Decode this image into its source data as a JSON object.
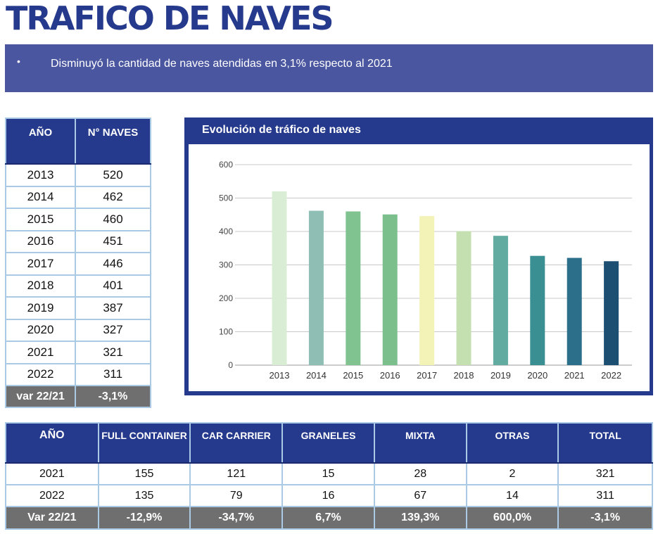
{
  "title": "TRAFICO DE NAVES",
  "banner": {
    "bullet": "•",
    "text": "Disminuyó la cantidad de naves atendidas en 3,1% respecto al 2021"
  },
  "table1": {
    "headers": [
      "AÑO",
      "N° NAVES"
    ],
    "rows": [
      [
        "2013",
        "520"
      ],
      [
        "2014",
        "462"
      ],
      [
        "2015",
        "460"
      ],
      [
        "2016",
        "451"
      ],
      [
        "2017",
        "446"
      ],
      [
        "2018",
        "401"
      ],
      [
        "2019",
        "387"
      ],
      [
        "2020",
        "327"
      ],
      [
        "2021",
        "321"
      ],
      [
        "2022",
        "311"
      ]
    ],
    "var_row": [
      "var 22/21",
      "-3,1%"
    ]
  },
  "chart_data": {
    "type": "bar",
    "title": "Evolución de tráfico de naves",
    "categories": [
      "2013",
      "2014",
      "2015",
      "2016",
      "2017",
      "2018",
      "2019",
      "2020",
      "2021",
      "2022"
    ],
    "values": [
      520,
      462,
      460,
      451,
      446,
      401,
      387,
      327,
      321,
      311
    ],
    "bar_colors": [
      "#d9ecd4",
      "#8fbfb4",
      "#80c390",
      "#7bbf8d",
      "#f3f3b8",
      "#c4e0b0",
      "#62aba1",
      "#3a8f93",
      "#2c6f8a",
      "#1d4f72"
    ],
    "ylim": [
      0,
      600
    ],
    "yticks": [
      0,
      100,
      200,
      300,
      400,
      500,
      600
    ],
    "grid": true,
    "xlabel": "",
    "ylabel": ""
  },
  "table2": {
    "headers": [
      "AÑO",
      "FULL CONTAINER",
      "CAR CARRIER",
      "GRANELES",
      "MIXTA",
      "OTRAS",
      "TOTAL"
    ],
    "rows": [
      [
        "2021",
        "155",
        "121",
        "15",
        "28",
        "2",
        "321"
      ],
      [
        "2022",
        "135",
        "79",
        "16",
        "67",
        "14",
        "311"
      ]
    ],
    "var_row": [
      "Var 22/21",
      "-12,9%",
      "-34,7%",
      "6,7%",
      "139,3%",
      "600,0%",
      "-3,1%"
    ]
  }
}
